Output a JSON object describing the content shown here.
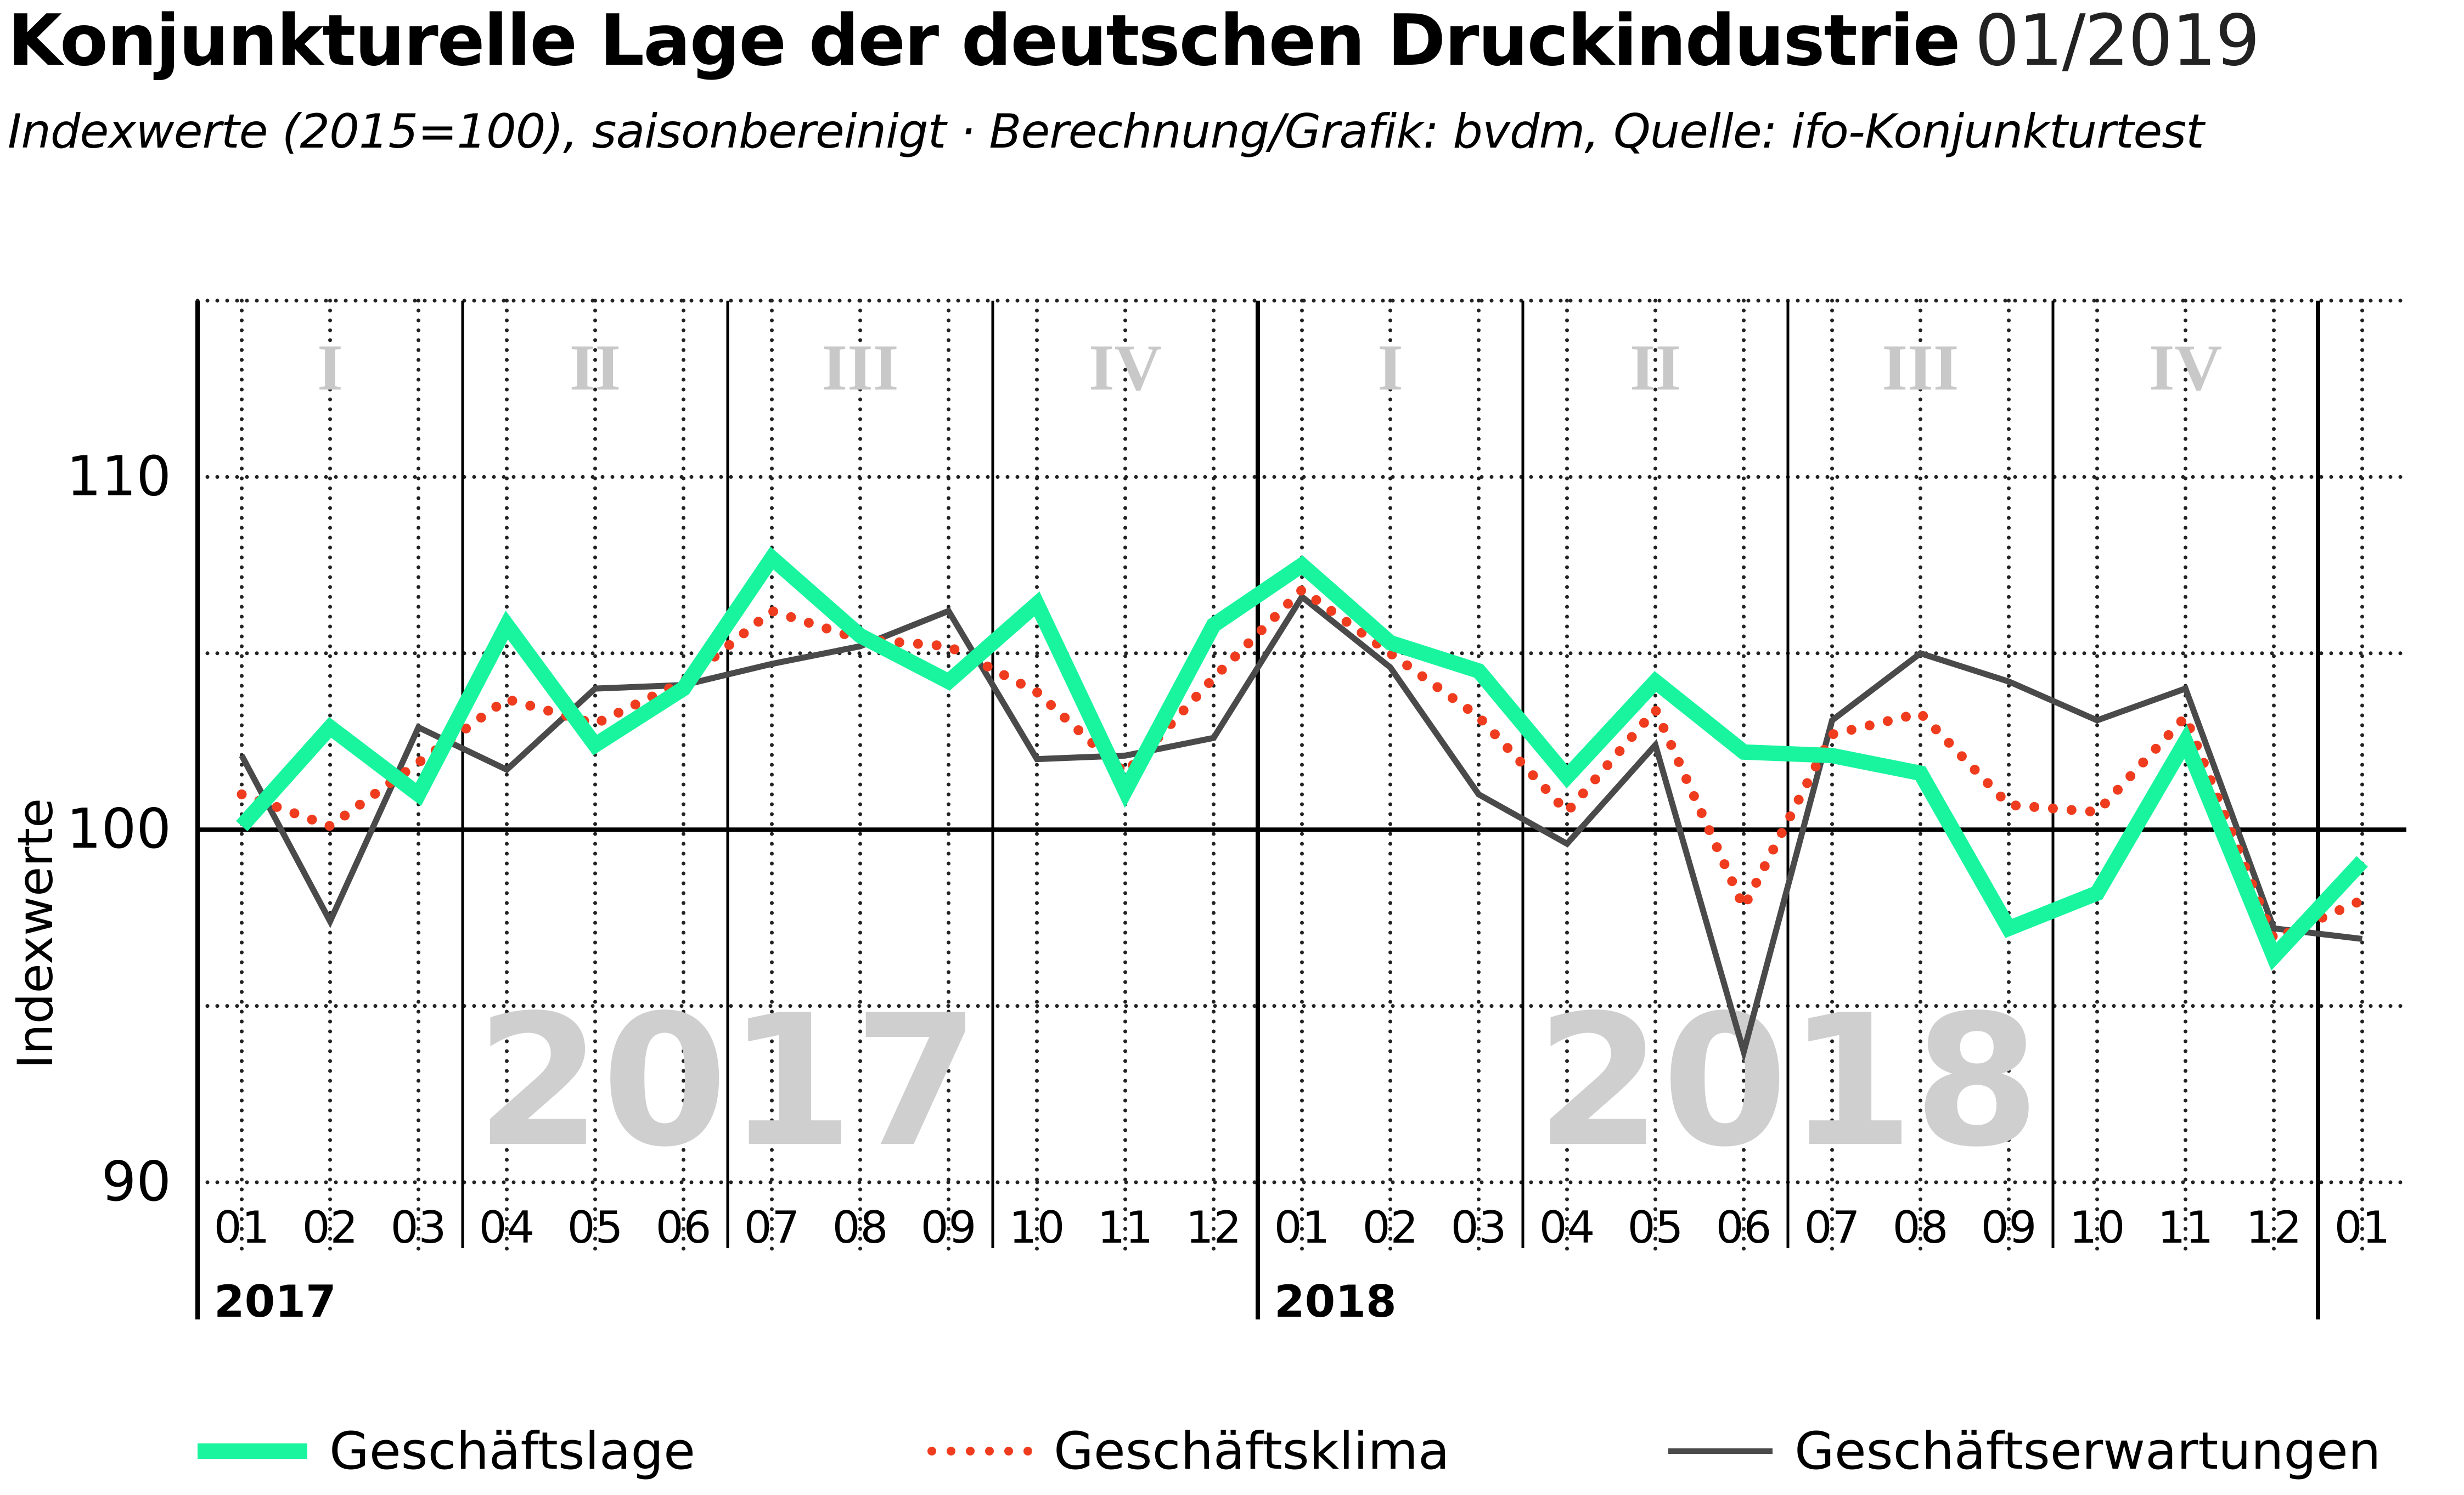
{
  "header": {
    "title": "Konjunkturelle Lage der deutschen Druckindustrie",
    "date": "01/2019",
    "subtitle": "Indexwerte (2015=100), saisonbereinigt · Berechnung/Grafik: bvdm, Quelle: ifo-Konjunkturtest"
  },
  "chart_data": {
    "type": "line",
    "ylabel": "Indexwerte",
    "ylim": [
      90,
      115
    ],
    "yticks": [
      90,
      100,
      110
    ],
    "categories": [
      "01",
      "02",
      "03",
      "04",
      "05",
      "06",
      "07",
      "08",
      "09",
      "10",
      "11",
      "12",
      "01",
      "02",
      "03",
      "04",
      "05",
      "06",
      "07",
      "08",
      "09",
      "10",
      "11",
      "12",
      "01"
    ],
    "years": [
      {
        "label": "2017",
        "start_index": 0
      },
      {
        "label": "2018",
        "start_index": 12
      }
    ],
    "watermarks": [
      "2017",
      "2018"
    ],
    "quarters": [
      "I",
      "II",
      "III",
      "IV",
      "I",
      "II",
      "III",
      "IV"
    ],
    "series": [
      {
        "name": "Geschäftslage",
        "color": "#19f59e",
        "style": "solid-thick",
        "values": [
          100.1,
          102.9,
          101.0,
          105.8,
          102.4,
          104.0,
          107.7,
          105.5,
          104.2,
          106.4,
          101.1,
          105.8,
          107.5,
          105.3,
          104.5,
          101.5,
          104.2,
          102.2,
          102.1,
          101.6,
          97.2,
          98.2,
          102.5,
          96.4,
          99.1
        ]
      },
      {
        "name": "Geschäftsklima",
        "color": "#f03c1e",
        "style": "dotted",
        "values": [
          101.0,
          100.1,
          101.9,
          103.7,
          103.0,
          104.2,
          106.2,
          105.4,
          105.2,
          103.9,
          101.6,
          104.3,
          106.8,
          105.0,
          103.2,
          100.5,
          103.4,
          97.8,
          102.7,
          103.3,
          100.7,
          100.5,
          103.2,
          96.9,
          98.0
        ]
      },
      {
        "name": "Geschäftserwartungen",
        "color": "#4a4a4a",
        "style": "solid-thin",
        "values": [
          102.1,
          97.4,
          102.9,
          101.7,
          104.0,
          104.1,
          104.7,
          105.2,
          106.2,
          102.0,
          102.1,
          102.6,
          106.6,
          104.6,
          101.0,
          99.6,
          102.4,
          93.7,
          103.1,
          105.0,
          104.2,
          103.1,
          104.0,
          97.2,
          96.9
        ]
      }
    ]
  },
  "legend": {
    "items": [
      {
        "label": "Geschäftslage"
      },
      {
        "label": "Geschäftsklima"
      },
      {
        "label": "Geschäftserwartungen"
      }
    ]
  }
}
